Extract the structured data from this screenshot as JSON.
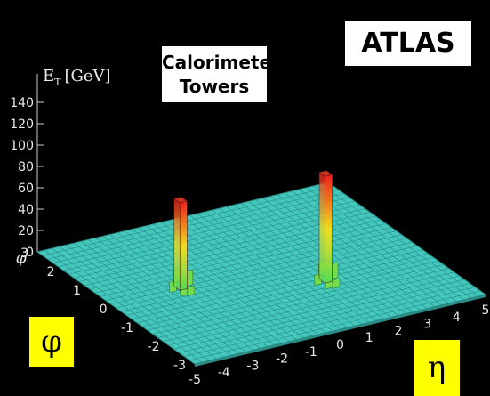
{
  "chart_data": {
    "type": "lego",
    "title": "",
    "zlabel": "E",
    "zlabel_sub": "T",
    "zlabel_unit": "[GeV]",
    "zlim": [
      0,
      150
    ],
    "z_ticks": [
      "0",
      "20",
      "40",
      "60",
      "80",
      "100",
      "120",
      "140"
    ],
    "phi_label": "φ",
    "phi_ticks": [
      "-3",
      "-2",
      "-1",
      "0",
      "1",
      "2",
      "3"
    ],
    "eta_label": "η",
    "eta_ticks": [
      "-5",
      "-4",
      "-3",
      "-2",
      "-1",
      "0",
      "1",
      "2",
      "3",
      "4",
      "5"
    ],
    "floor_color": "#44c7bd",
    "towers": [
      {
        "eta": -2.6,
        "phi": 0.2,
        "et": 82
      },
      {
        "eta": 1.4,
        "phi": -0.9,
        "et": 100
      }
    ]
  },
  "labels": {
    "experiment": "ATLAS",
    "calorimeter_line1": "Calorimeter",
    "calorimeter_line2": "Towers",
    "phi_box": "φ",
    "eta_box": "η"
  }
}
